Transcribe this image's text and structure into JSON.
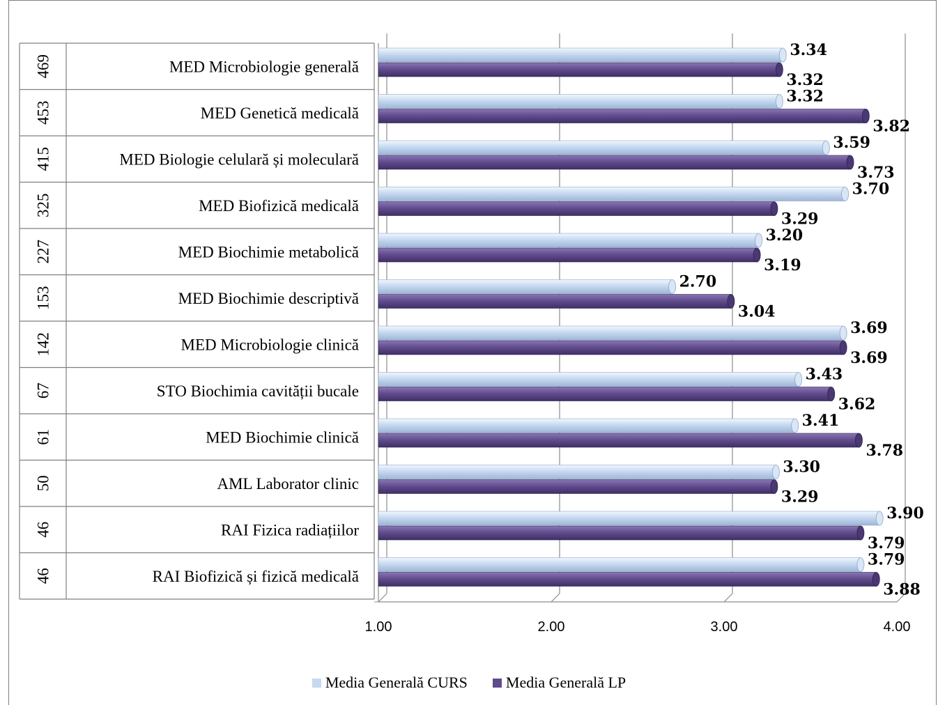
{
  "chart_data": {
    "type": "bar",
    "orientation": "horizontal",
    "row_header_columns": [
      "count",
      "subject"
    ],
    "rows": [
      {
        "count": "469",
        "subject": "MED Microbiologie generală"
      },
      {
        "count": "453",
        "subject": "MED Genetică medicală"
      },
      {
        "count": "415",
        "subject": "MED Biologie celulară și moleculară"
      },
      {
        "count": "325",
        "subject": "MED Biofizică medicală"
      },
      {
        "count": "227",
        "subject": "MED Biochimie metabolică"
      },
      {
        "count": "153",
        "subject": "MED Biochimie descriptivă"
      },
      {
        "count": "142",
        "subject": "MED Microbiologie clinică"
      },
      {
        "count": "67",
        "subject": "STO Biochimia cavității bucale"
      },
      {
        "count": "61",
        "subject": "MED Biochimie clinică"
      },
      {
        "count": "50",
        "subject": "AML Laborator clinic"
      },
      {
        "count": "46",
        "subject": "RAI Fizica radiațiilor"
      },
      {
        "count": "46",
        "subject": "RAI Biofizică și fizică medicală"
      }
    ],
    "series": [
      {
        "name": "Media Generală CURS",
        "color": "#c6d9f1",
        "values": [
          3.34,
          3.32,
          3.59,
          3.7,
          3.2,
          2.7,
          3.69,
          3.43,
          3.41,
          3.3,
          3.9,
          3.79
        ],
        "labels": [
          "3.34",
          "3.32",
          "3.59",
          "3.70",
          "3.20",
          "2.70",
          "3.69",
          "3.43",
          "3.41",
          "3.30",
          "3.90",
          "3.79"
        ]
      },
      {
        "name": "Media Generală LP",
        "color": "#5f4b8b",
        "values": [
          3.32,
          3.82,
          3.73,
          3.29,
          3.19,
          3.04,
          3.69,
          3.62,
          3.78,
          3.29,
          3.79,
          3.88
        ],
        "labels": [
          "3.32",
          "3.82",
          "3.73",
          "3.29",
          "3.19",
          "3.04",
          "3.69",
          "3.62",
          "3.78",
          "3.29",
          "3.79",
          "3.88"
        ]
      }
    ],
    "xlim": [
      1.0,
      4.0
    ],
    "xticks": [
      "1.00",
      "2.00",
      "3.00",
      "4.00"
    ],
    "grid": true,
    "legend_position": "bottom"
  }
}
